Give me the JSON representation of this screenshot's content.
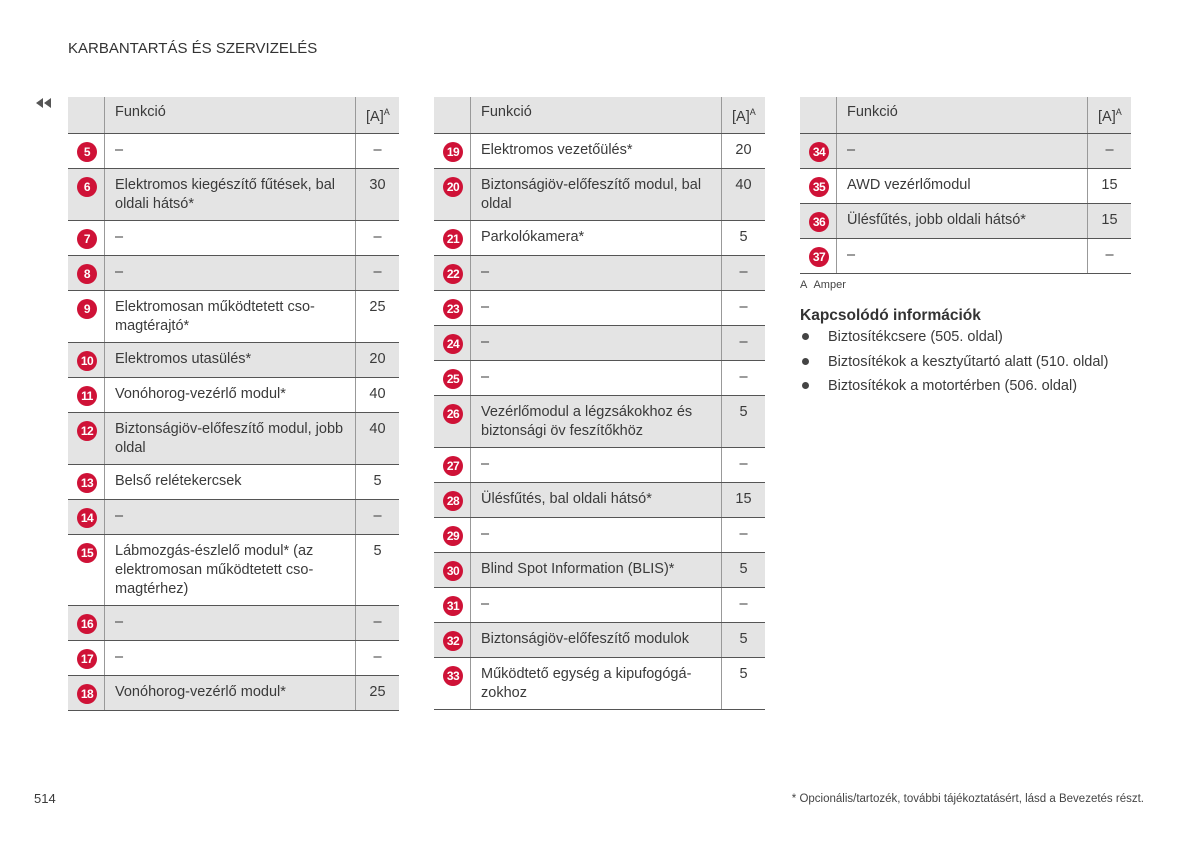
{
  "header_title": "KARBANTARTÁS ÉS SZERVIZELÉS",
  "tables": [
    {
      "columns": [
        "Funkció",
        "[A]"
      ],
      "amp_sup": "A",
      "rows": [
        {
          "n": 5,
          "f": "–",
          "a": "–"
        },
        {
          "n": 6,
          "f": "Elektromos kiegészítő fűtések, bal oldali hátsó*",
          "a": 30
        },
        {
          "n": 7,
          "f": "–",
          "a": "–"
        },
        {
          "n": 8,
          "f": "–",
          "a": "–"
        },
        {
          "n": 9,
          "f": "Elektromosan működtetett cso­magtérajtó*",
          "a": 25
        },
        {
          "n": 10,
          "f": "Elektromos utasülés*",
          "a": 20
        },
        {
          "n": 11,
          "f": "Vonóhorog-vezérlő modul*",
          "a": 40
        },
        {
          "n": 12,
          "f": "Biztonságiöv-előfeszítő modul, jobb oldal",
          "a": 40
        },
        {
          "n": 13,
          "f": "Belső relétekercsek",
          "a": 5
        },
        {
          "n": 14,
          "f": "–",
          "a": "–"
        },
        {
          "n": 15,
          "f": "Lábmozgás-észlelő modul* (az elektromosan működtetett cso­magtérhez)",
          "a": 5
        },
        {
          "n": 16,
          "f": "–",
          "a": "–"
        },
        {
          "n": 17,
          "f": "–",
          "a": "–"
        },
        {
          "n": 18,
          "f": "Vonóhorog-vezérlő modul*",
          "a": 25
        }
      ]
    },
    {
      "columns": [
        "Funkció",
        "[A]"
      ],
      "amp_sup": "A",
      "rows": [
        {
          "n": 19,
          "f": "Elektromos vezetőülés*",
          "a": 20
        },
        {
          "n": 20,
          "f": "Biztonságiöv-előfeszítő modul, bal oldal",
          "a": 40
        },
        {
          "n": 21,
          "f": "Parkolókamera*",
          "a": 5
        },
        {
          "n": 22,
          "f": "–",
          "a": "–"
        },
        {
          "n": 23,
          "f": "–",
          "a": "–"
        },
        {
          "n": 24,
          "f": "–",
          "a": "–"
        },
        {
          "n": 25,
          "f": "–",
          "a": "–"
        },
        {
          "n": 26,
          "f": "Vezérlőmodul a légzsákokhoz és biztonsági öv feszítőkhöz",
          "a": 5
        },
        {
          "n": 27,
          "f": "–",
          "a": "–"
        },
        {
          "n": 28,
          "f": "Ülésfűtés, bal oldali hátsó*",
          "a": 15
        },
        {
          "n": 29,
          "f": "–",
          "a": "–"
        },
        {
          "n": 30,
          "f": "Blind Spot Information (BLIS)*",
          "a": 5
        },
        {
          "n": 31,
          "f": "–",
          "a": "–"
        },
        {
          "n": 32,
          "f": "Biztonságiöv-előfeszítő modulok",
          "a": 5
        },
        {
          "n": 33,
          "f": "Működtető egység a kipufogógá­zokhoz",
          "a": 5
        }
      ]
    },
    {
      "columns": [
        "Funkció",
        "[A]"
      ],
      "amp_sup": "A",
      "rows": [
        {
          "n": 34,
          "f": "–",
          "a": "–"
        },
        {
          "n": 35,
          "f": "AWD vezérlőmodul",
          "a": 15
        },
        {
          "n": 36,
          "f": "Ülésfűtés, jobb oldali hátsó*",
          "a": 15
        },
        {
          "n": 37,
          "f": "–",
          "a": "–"
        }
      ]
    }
  ],
  "footnote": {
    "mark": "A",
    "text": "Amper"
  },
  "related": {
    "title": "Kapcsolódó információk",
    "items": [
      "Biztosítékcsere (505. oldal)",
      "Biztosítékok a kesztyűtartó alatt (510. oldal)",
      "Biztosítékok a motortérben (506. oldal)"
    ]
  },
  "page_number": "514",
  "footer_note": "* Opcionális/tartozék, további tájékoztatásért, lásd a Bevezetés részt."
}
